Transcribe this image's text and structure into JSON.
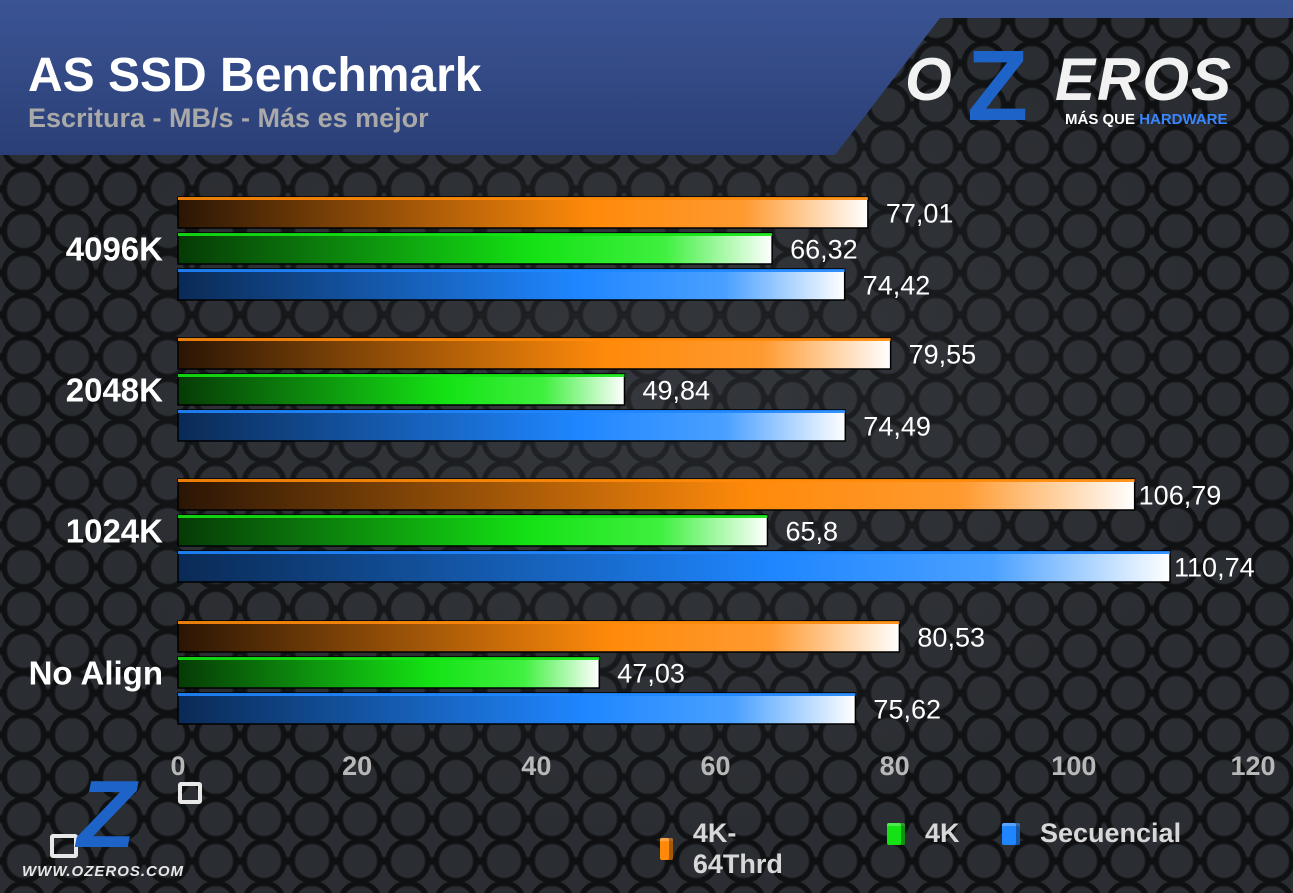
{
  "header": {
    "title": "AS SSD Benchmark",
    "subtitle": "Escritura - MB/s - Más es mejor"
  },
  "logo": {
    "text_left": "O",
    "text_z": "Z",
    "text_right": "EROS",
    "tagline_a": "MÁS QUE ",
    "tagline_b": "HARDWARE",
    "url": "WWW.OZEROS.COM"
  },
  "colors": {
    "orange": "#ff8a0a",
    "green": "#14e214",
    "blue": "#1f86ff",
    "header_blue": "#34508e"
  },
  "chart_data": {
    "type": "bar",
    "orientation": "horizontal",
    "title": "AS SSD Benchmark",
    "subtitle": "Escritura - MB/s - Más es mejor",
    "categories": [
      "4096K",
      "2048K",
      "1024K",
      "No Align"
    ],
    "series": [
      {
        "name": "4K-64Thrd",
        "color": "#ff8a0a",
        "values": [
          77.01,
          79.55,
          106.79,
          80.53
        ],
        "labels": [
          "77,01",
          "79,55",
          "106,79",
          "80,53"
        ]
      },
      {
        "name": "4K",
        "color": "#14e214",
        "values": [
          66.32,
          49.84,
          65.8,
          47.03
        ],
        "labels": [
          "66,32",
          "49,84",
          "65,8",
          "47,03"
        ]
      },
      {
        "name": "Secuencial",
        "color": "#1f86ff",
        "values": [
          74.42,
          74.49,
          110.74,
          75.62
        ],
        "labels": [
          "74,42",
          "74,49",
          "110,74",
          "75,62"
        ]
      }
    ],
    "xlim": [
      0,
      120
    ],
    "xticks": [
      "0",
      "20",
      "40",
      "60",
      "80",
      "100",
      "120"
    ],
    "xlabel": "",
    "ylabel": "",
    "grid": false,
    "legend_position": "bottom-right"
  }
}
